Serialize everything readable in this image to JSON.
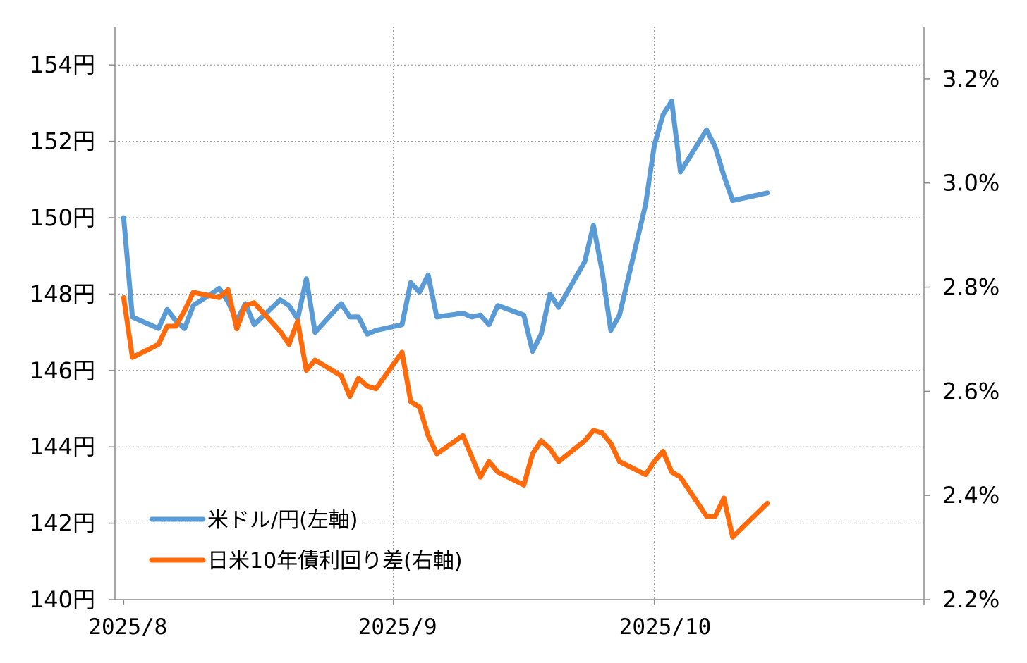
{
  "chart_data": {
    "type": "line",
    "title": "",
    "x_ticks": [
      "2025/8",
      "2025/9",
      "2025/10"
    ],
    "y_left": {
      "ticks": [
        "140円",
        "142円",
        "144円",
        "146円",
        "148円",
        "150円",
        "152円",
        "154円"
      ],
      "range": [
        140,
        155
      ],
      "unit": "円"
    },
    "y_right": {
      "ticks": [
        "2.2%",
        "2.4%",
        "2.6%",
        "2.8%",
        "3.0%",
        "3.2%"
      ],
      "range": [
        2.2,
        3.3
      ],
      "unit": "%"
    },
    "grid": true,
    "legend_position": "bottom-left",
    "series": [
      {
        "name": "米ドル/円(左軸)",
        "axis": "left",
        "color": "#5b9bd5",
        "x": [
          "2025-08-01",
          "2025-08-02",
          "2025-08-05",
          "2025-08-06",
          "2025-08-07",
          "2025-08-08",
          "2025-08-09",
          "2025-08-12",
          "2025-08-13",
          "2025-08-14",
          "2025-08-15",
          "2025-08-16",
          "2025-08-19",
          "2025-08-20",
          "2025-08-21",
          "2025-08-22",
          "2025-08-23",
          "2025-08-26",
          "2025-08-27",
          "2025-08-28",
          "2025-08-29",
          "2025-08-30",
          "2025-09-02",
          "2025-09-03",
          "2025-09-04",
          "2025-09-05",
          "2025-09-06",
          "2025-09-09",
          "2025-09-10",
          "2025-09-11",
          "2025-09-12",
          "2025-09-13",
          "2025-09-16",
          "2025-09-17",
          "2025-09-18",
          "2025-09-19",
          "2025-09-20",
          "2025-09-23",
          "2025-09-24",
          "2025-09-25",
          "2025-09-26",
          "2025-09-27",
          "2025-09-30",
          "2025-10-01",
          "2025-10-02",
          "2025-10-03",
          "2025-10-04",
          "2025-10-07",
          "2025-10-08",
          "2025-10-09",
          "2025-10-10",
          "2025-10-14",
          "2025-10-15",
          "2025-10-16",
          "2025-10-17",
          "2025-10-18"
        ],
        "values": [
          150.0,
          147.4,
          147.1,
          147.6,
          147.3,
          147.1,
          147.7,
          148.15,
          147.8,
          147.3,
          147.75,
          147.2,
          147.85,
          147.7,
          147.35,
          148.4,
          147.0,
          147.75,
          147.4,
          147.4,
          146.95,
          147.05,
          147.2,
          148.3,
          148.05,
          148.5,
          147.4,
          147.5,
          147.4,
          147.45,
          147.2,
          147.7,
          147.45,
          146.5,
          146.95,
          148.0,
          147.65,
          148.85,
          149.8,
          148.6,
          147.05,
          147.45,
          150.35,
          151.9,
          152.7,
          153.05,
          151.2,
          152.3,
          151.85,
          151.1,
          150.45,
          150.65,
          null,
          null,
          null,
          null
        ]
      },
      {
        "name": "日米10年債利回り差(右軸)",
        "axis": "right",
        "color": "#ff6a0a",
        "x": [
          "2025-08-01",
          "2025-08-02",
          "2025-08-05",
          "2025-08-06",
          "2025-08-07",
          "2025-08-08",
          "2025-08-09",
          "2025-08-12",
          "2025-08-13",
          "2025-08-14",
          "2025-08-15",
          "2025-08-16",
          "2025-08-19",
          "2025-08-20",
          "2025-08-21",
          "2025-08-22",
          "2025-08-23",
          "2025-08-26",
          "2025-08-27",
          "2025-08-28",
          "2025-08-29",
          "2025-08-30",
          "2025-09-02",
          "2025-09-03",
          "2025-09-04",
          "2025-09-05",
          "2025-09-06",
          "2025-09-09",
          "2025-09-10",
          "2025-09-11",
          "2025-09-12",
          "2025-09-13",
          "2025-09-16",
          "2025-09-17",
          "2025-09-18",
          "2025-09-19",
          "2025-09-20",
          "2025-09-23",
          "2025-09-24",
          "2025-09-25",
          "2025-09-26",
          "2025-09-27",
          "2025-09-30",
          "2025-10-01",
          "2025-10-02",
          "2025-10-03",
          "2025-10-04",
          "2025-10-07",
          "2025-10-08",
          "2025-10-09",
          "2025-10-10",
          "2025-10-14",
          "2025-10-15",
          "2025-10-16",
          "2025-10-17",
          "2025-10-18"
        ],
        "values": [
          2.78,
          2.665,
          2.69,
          2.725,
          2.725,
          2.755,
          2.79,
          2.78,
          2.795,
          2.72,
          2.765,
          2.77,
          2.715,
          2.69,
          2.735,
          2.64,
          2.66,
          2.63,
          2.59,
          2.625,
          2.61,
          2.605,
          2.675,
          2.58,
          2.57,
          2.515,
          2.48,
          2.515,
          2.475,
          2.435,
          2.465,
          2.445,
          2.42,
          2.48,
          2.505,
          2.49,
          2.465,
          2.505,
          2.525,
          2.52,
          2.5,
          2.465,
          2.44,
          2.465,
          2.485,
          2.445,
          2.435,
          2.36,
          2.36,
          2.395,
          2.32,
          2.385,
          null,
          null,
          null,
          null
        ]
      }
    ]
  }
}
